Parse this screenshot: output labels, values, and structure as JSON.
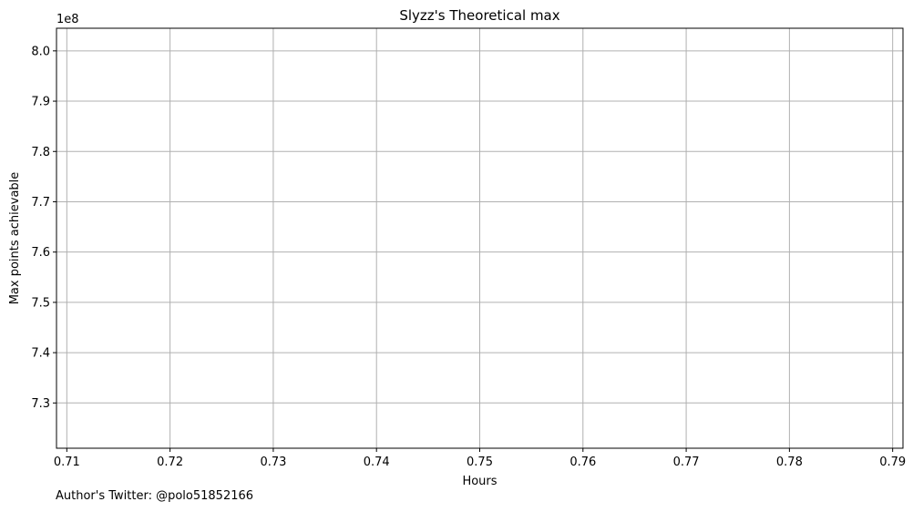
{
  "chart_data": {
    "type": "line",
    "title": "Slyzz's Theoretical max",
    "xlabel": "Hours",
    "ylabel": "Max points achievable",
    "y_offset_text": "1e8",
    "xlim": [
      0.709,
      0.791
    ],
    "ylim": [
      7.21,
      8.045
    ],
    "x_ticks": [
      0.71,
      0.72,
      0.73,
      0.74,
      0.75,
      0.76,
      0.77,
      0.78,
      0.79
    ],
    "x_tick_labels": [
      "0.71",
      "0.72",
      "0.73",
      "0.74",
      "0.75",
      "0.76",
      "0.77",
      "0.78",
      "0.79"
    ],
    "y_ticks": [
      7.3,
      7.4,
      7.5,
      7.6,
      7.7,
      7.8,
      7.9,
      8.0
    ],
    "y_tick_labels": [
      "7.3",
      "7.4",
      "7.5",
      "7.6",
      "7.7",
      "7.8",
      "7.9",
      "8.0"
    ],
    "series": [],
    "grid": true,
    "grid_color": "#b0b0b0",
    "axis_color": "#000000"
  },
  "footnote": "Author's Twitter: @polo51852166"
}
